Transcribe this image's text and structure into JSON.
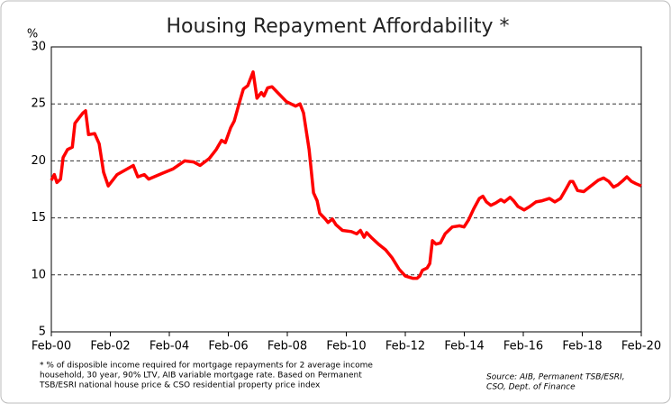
{
  "chart_data": {
    "type": "line",
    "title": "Housing Repayment Affordability *",
    "y_label": "%",
    "color": "#ff0000",
    "grid": true,
    "x": [
      2000.08,
      2000.18,
      2000.27,
      2000.39,
      2000.48,
      2000.63,
      2000.79,
      2000.88,
      2001.15,
      2001.24,
      2001.34,
      2001.55,
      2001.7,
      2001.85,
      2002.01,
      2002.31,
      2002.86,
      2003.01,
      2003.23,
      2003.38,
      2003.84,
      2004.21,
      2004.6,
      2004.91,
      2005.12,
      2005.43,
      2005.67,
      2005.85,
      2005.98,
      2006.16,
      2006.28,
      2006.43,
      2006.59,
      2006.74,
      2006.92,
      2007.05,
      2007.2,
      2007.29,
      2007.41,
      2007.56,
      2007.75,
      2008.05,
      2008.36,
      2008.51,
      2008.63,
      2008.82,
      2008.97,
      2009.09,
      2009.18,
      2009.37,
      2009.46,
      2009.61,
      2009.73,
      2009.95,
      2010.25,
      2010.43,
      2010.56,
      2010.68,
      2010.77,
      2010.92,
      2011.17,
      2011.41,
      2011.63,
      2011.87,
      2012.08,
      2012.33,
      2012.48,
      2012.57,
      2012.66,
      2012.82,
      2012.91,
      2013.0,
      2013.12,
      2013.27,
      2013.43,
      2013.67,
      2013.92,
      2014.07,
      2014.22,
      2014.4,
      2014.59,
      2014.71,
      2014.83,
      2014.98,
      2015.14,
      2015.32,
      2015.44,
      2015.63,
      2015.75,
      2015.9,
      2016.11,
      2016.3,
      2016.51,
      2016.72,
      2016.97,
      2017.15,
      2017.34,
      2017.52,
      2017.67,
      2017.76,
      2017.92,
      2018.13,
      2018.37,
      2018.62,
      2018.8,
      2018.98,
      2019.14,
      2019.29,
      2019.47,
      2019.59,
      2019.75,
      2019.9,
      2020.08
    ],
    "values": [
      18.3,
      18.8,
      18.1,
      18.4,
      20.3,
      21.0,
      21.2,
      23.3,
      24.2,
      24.4,
      22.3,
      22.4,
      21.5,
      19.0,
      17.8,
      18.8,
      19.6,
      18.6,
      18.8,
      18.4,
      18.9,
      19.3,
      20.0,
      19.9,
      19.6,
      20.2,
      21.0,
      21.8,
      21.6,
      22.9,
      23.5,
      24.9,
      26.3,
      26.6,
      27.8,
      25.5,
      26.0,
      25.7,
      26.4,
      26.5,
      26.0,
      25.2,
      24.8,
      25.0,
      24.2,
      21.0,
      17.2,
      16.5,
      15.4,
      14.9,
      14.6,
      14.9,
      14.4,
      13.9,
      13.8,
      13.6,
      13.9,
      13.3,
      13.7,
      13.3,
      12.7,
      12.2,
      11.5,
      10.5,
      9.9,
      9.7,
      9.7,
      9.9,
      10.4,
      10.6,
      11.0,
      13.0,
      12.7,
      12.8,
      13.6,
      14.2,
      14.3,
      14.2,
      14.8,
      15.8,
      16.7,
      16.9,
      16.4,
      16.1,
      16.3,
      16.6,
      16.4,
      16.8,
      16.5,
      16.0,
      15.7,
      16.0,
      16.4,
      16.5,
      16.7,
      16.4,
      16.7,
      17.5,
      18.2,
      18.2,
      17.4,
      17.3,
      17.8,
      18.3,
      18.5,
      18.2,
      17.7,
      17.9,
      18.3,
      18.6,
      18.2,
      18.0,
      17.8
    ],
    "xlim": [
      2000.08,
      2020.08
    ],
    "xticks": [
      {
        "value": 2000.08,
        "label": "Feb-00"
      },
      {
        "value": 2002.08,
        "label": "Feb-02"
      },
      {
        "value": 2004.08,
        "label": "Feb-04"
      },
      {
        "value": 2006.08,
        "label": "Feb-06"
      },
      {
        "value": 2008.08,
        "label": "Feb-08"
      },
      {
        "value": 2010.08,
        "label": "Feb-10"
      },
      {
        "value": 2012.08,
        "label": "Feb-12"
      },
      {
        "value": 2014.08,
        "label": "Feb-14"
      },
      {
        "value": 2016.08,
        "label": "Feb-16"
      },
      {
        "value": 2018.08,
        "label": "Feb-18"
      },
      {
        "value": 2020.08,
        "label": "Feb-20"
      }
    ],
    "ylim": [
      5,
      30
    ],
    "yticks": [
      5,
      10,
      15,
      20,
      25,
      30
    ],
    "footnote": [
      "* % of disposible income required for mortgage repayments for 2 average income",
      "household, 30 year, 90% LTV, AIB variable mortgage rate. Based on Permanent",
      "TSB/ESRI national house price & CSO residential property price index"
    ],
    "source": [
      "Source: AIB, Permanent TSB/ESRI,",
      "CSO, Dept. of Finance"
    ]
  }
}
